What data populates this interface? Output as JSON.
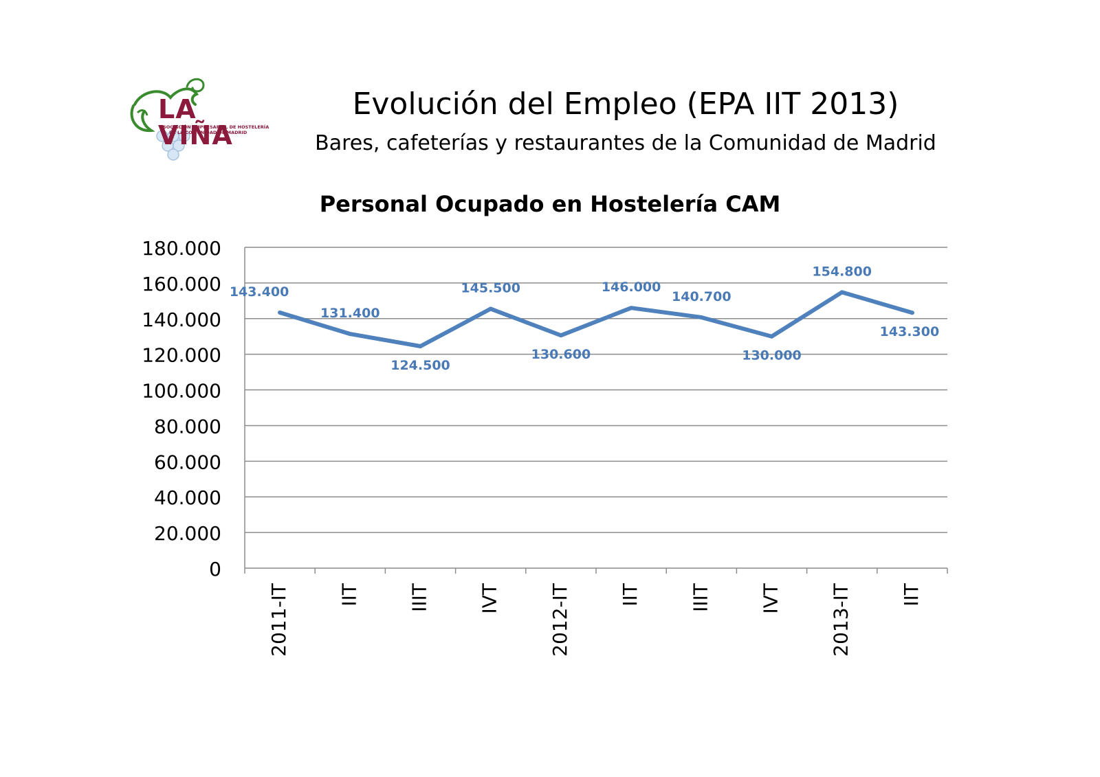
{
  "header": {
    "title": "Evolución del Empleo (EPA IIT 2013)",
    "subtitle": "Bares, cafeterías y restaurantes de la Comunidad de Madrid"
  },
  "logo": {
    "name": "LA VIÑA",
    "line1": "ASOCIACIÓN EMPRESARIAL DE HOSTELERÍA",
    "line2": "DE LA COMUNIDAD DE MADRID",
    "colors": {
      "text": "#8b1a3c",
      "vine": "#3a8a2e",
      "grapes": "#c8dcf0"
    }
  },
  "chart_data": {
    "type": "line",
    "title": "Personal Ocupado en Hostelería CAM",
    "categories": [
      "2011-IT",
      "IIT",
      "IIIT",
      "IVT",
      "2012-IT",
      "IIT",
      "IIIT",
      "IVT",
      "2013-IT",
      "IIT"
    ],
    "series": [
      {
        "values": [
          143400,
          131400,
          124500,
          145500,
          130600,
          146000,
          140700,
          130000,
          154800,
          143300
        ],
        "data_labels": [
          "143.400",
          "131.400",
          "124.500",
          "145.500",
          "130.600",
          "146.000",
          "140.700",
          "130.000",
          "154.800",
          "143.300"
        ],
        "color": "#4f81bd",
        "label_color": "#4a7ab5"
      }
    ],
    "ylim": [
      0,
      180000
    ],
    "yticks": [
      0,
      20000,
      40000,
      60000,
      80000,
      100000,
      120000,
      140000,
      160000,
      180000
    ],
    "ytick_labels": [
      "0",
      "20.000",
      "40.000",
      "60.000",
      "80.000",
      "100.000",
      "120.000",
      "140.000",
      "160.000",
      "180.000"
    ],
    "grid": true,
    "legend": "none"
  }
}
